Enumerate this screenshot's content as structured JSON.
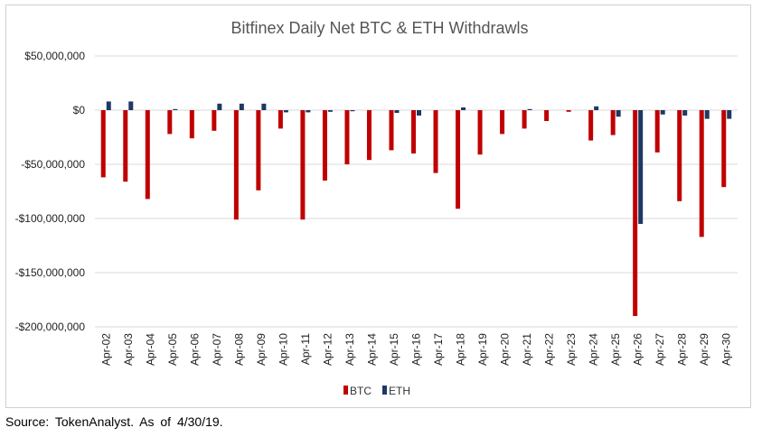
{
  "source_note": "Source:  TokenAnalyst.  As  of  4/30/19.",
  "chart_data": {
    "type": "bar",
    "title": "Bitfinex Daily Net BTC & ETH Withdrawls",
    "xlabel": "",
    "ylabel": "",
    "ylim": [
      -200000000,
      50000000
    ],
    "yticks": [
      50000000,
      0,
      -50000000,
      -100000000,
      -150000000,
      -200000000
    ],
    "ytick_labels": [
      "$50,000,000",
      "$0",
      "-$50,000,000",
      "-$100,000,000",
      "-$150,000,000",
      "-$200,000,000"
    ],
    "grid": true,
    "legend_position": "bottom-center",
    "categories": [
      "Apr-02",
      "Apr-03",
      "Apr-04",
      "Apr-05",
      "Apr-06",
      "Apr-07",
      "Apr-08",
      "Apr-09",
      "Apr-10",
      "Apr-11",
      "Apr-12",
      "Apr-13",
      "Apr-14",
      "Apr-15",
      "Apr-16",
      "Apr-17",
      "Apr-18",
      "Apr-19",
      "Apr-20",
      "Apr-21",
      "Apr-22",
      "Apr-23",
      "Apr-24",
      "Apr-25",
      "Apr-26",
      "Apr-27",
      "Apr-28",
      "Apr-29",
      "Apr-30"
    ],
    "series": [
      {
        "name": "BTC",
        "color": "#c00000",
        "values": [
          -62000000,
          -66000000,
          -82000000,
          -22000000,
          -26000000,
          -19000000,
          -101000000,
          -74000000,
          -17000000,
          -101000000,
          -65000000,
          -50000000,
          -46000000,
          -37000000,
          -40000000,
          -58000000,
          -91000000,
          -41000000,
          -22000000,
          -17000000,
          -10000000,
          -1500000,
          -28000000,
          -23000000,
          -190000000,
          -39000000,
          -84000000,
          -117000000,
          -71000000
        ]
      },
      {
        "name": "ETH",
        "color": "#1f3864",
        "values": [
          8000000,
          8000000,
          0,
          1000000,
          0,
          6000000,
          6000000,
          6000000,
          -2000000,
          -2000000,
          -1500000,
          -1000000,
          0,
          -2500000,
          -5000000,
          0,
          2500000,
          0,
          0,
          1000000,
          0,
          0,
          3500000,
          -6000000,
          -105000000,
          -4000000,
          -5000000,
          -8000000,
          -8000000
        ]
      }
    ]
  }
}
